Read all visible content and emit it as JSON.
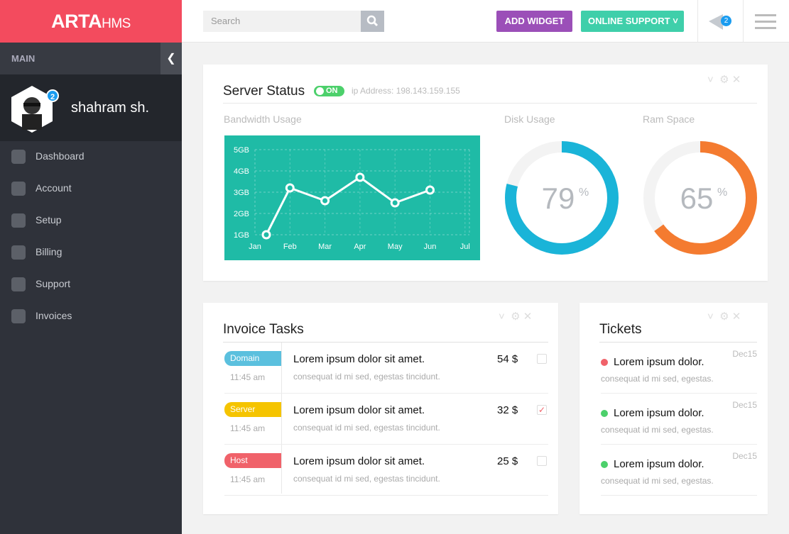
{
  "brand": {
    "name": "ARTA",
    "suffix": "HMS"
  },
  "search": {
    "placeholder": "Search"
  },
  "header": {
    "add_widget": "ADD WIDGET",
    "online_support": "ONLINE SUPPORT",
    "notifications": "2"
  },
  "sidebar": {
    "section": "MAIN",
    "user": {
      "name": "shahram sh.",
      "badge": "2"
    },
    "menu": [
      "Dashboard",
      "Account",
      "Setup",
      "Billing",
      "Support",
      "Invoices"
    ]
  },
  "server_status": {
    "title": "Server Status",
    "status": "ON",
    "ip": "ip Address: 198.143.159.155",
    "bandwidth_title": "Bandwidth Usage",
    "disk_title": "Disk Usage",
    "ram_title": "Ram Space"
  },
  "chart_data": [
    {
      "type": "line",
      "categories": [
        "Jan",
        "Feb",
        "Mar",
        "Apr",
        "May",
        "Jun",
        "Jul"
      ],
      "values": [
        1.0,
        3.2,
        2.6,
        3.7,
        2.5,
        3.1,
        null
      ],
      "ylim": [
        1,
        5
      ],
      "yticks": [
        {
          "value": 1,
          "label": "1GB"
        },
        {
          "value": 2,
          "label": "2GB"
        },
        {
          "value": 3,
          "label": "3GB"
        },
        {
          "value": 4,
          "label": "4GB"
        },
        {
          "value": 5,
          "label": "5GB"
        }
      ],
      "grid": true,
      "color": "#ffffff",
      "background": "#1fbba6"
    },
    {
      "type": "pie",
      "values": [
        79
      ],
      "unit": "%",
      "color": "#1ab4d8"
    },
    {
      "type": "pie",
      "values": [
        65
      ],
      "unit": "%",
      "color": "#f47b30"
    }
  ],
  "invoice_tasks": {
    "title": "Invoice Tasks",
    "rows": [
      {
        "tag": "Domain",
        "tag_color": "#5bc0de",
        "time": "11:45 am",
        "title": "Lorem ipsum dolor sit amet.",
        "subtitle": "consequat id mi sed, egestas tincidunt.",
        "price": "54 $",
        "checked": false
      },
      {
        "tag": "Server",
        "tag_color": "#f5c400",
        "time": "11:45 am",
        "title": "Lorem ipsum dolor sit amet.",
        "subtitle": "consequat id mi sed, egestas tincidunt.",
        "price": "32 $",
        "checked": true
      },
      {
        "tag": "Host",
        "tag_color": "#f0626a",
        "time": "11:45 am",
        "title": "Lorem ipsum dolor sit amet.",
        "subtitle": "consequat id mi sed, egestas tincidunt.",
        "price": "25 $",
        "checked": false
      }
    ]
  },
  "tickets": {
    "title": "Tickets",
    "rows": [
      {
        "title": "Lorem ipsum dolor.",
        "subtitle": "consequat id mi sed, egestas.",
        "date": "Dec15",
        "color": "#f0626a"
      },
      {
        "title": "Lorem ipsum dolor.",
        "subtitle": "consequat id mi sed, egestas.",
        "date": "Dec15",
        "color": "#4cd06b"
      },
      {
        "title": "Lorem ipsum dolor.",
        "subtitle": "consequat id mi sed, egestas.",
        "date": "Dec15",
        "color": "#4cd06b"
      }
    ]
  }
}
